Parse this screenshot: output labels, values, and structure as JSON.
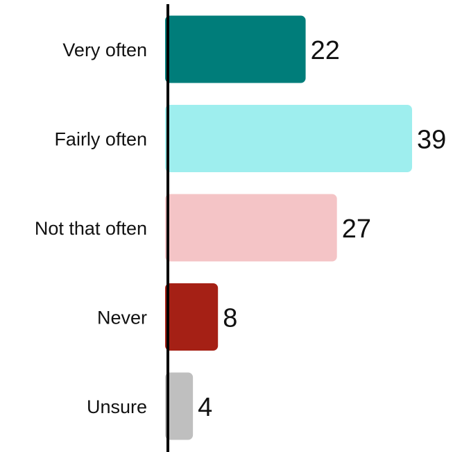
{
  "chart_data": {
    "type": "bar",
    "orientation": "horizontal",
    "categories": [
      "Very often",
      "Fairly often",
      "Not that often",
      "Never",
      "Unsure"
    ],
    "values": [
      22,
      39,
      27,
      8,
      4
    ],
    "colors": [
      "#007d7a",
      "#9eeeee",
      "#f4c4c6",
      "#a52015",
      "#bfbfbf"
    ],
    "title": "",
    "xlabel": "",
    "ylabel": "",
    "xlim": [
      0,
      39
    ],
    "grid": false,
    "legend": "none",
    "data_labels": true
  }
}
